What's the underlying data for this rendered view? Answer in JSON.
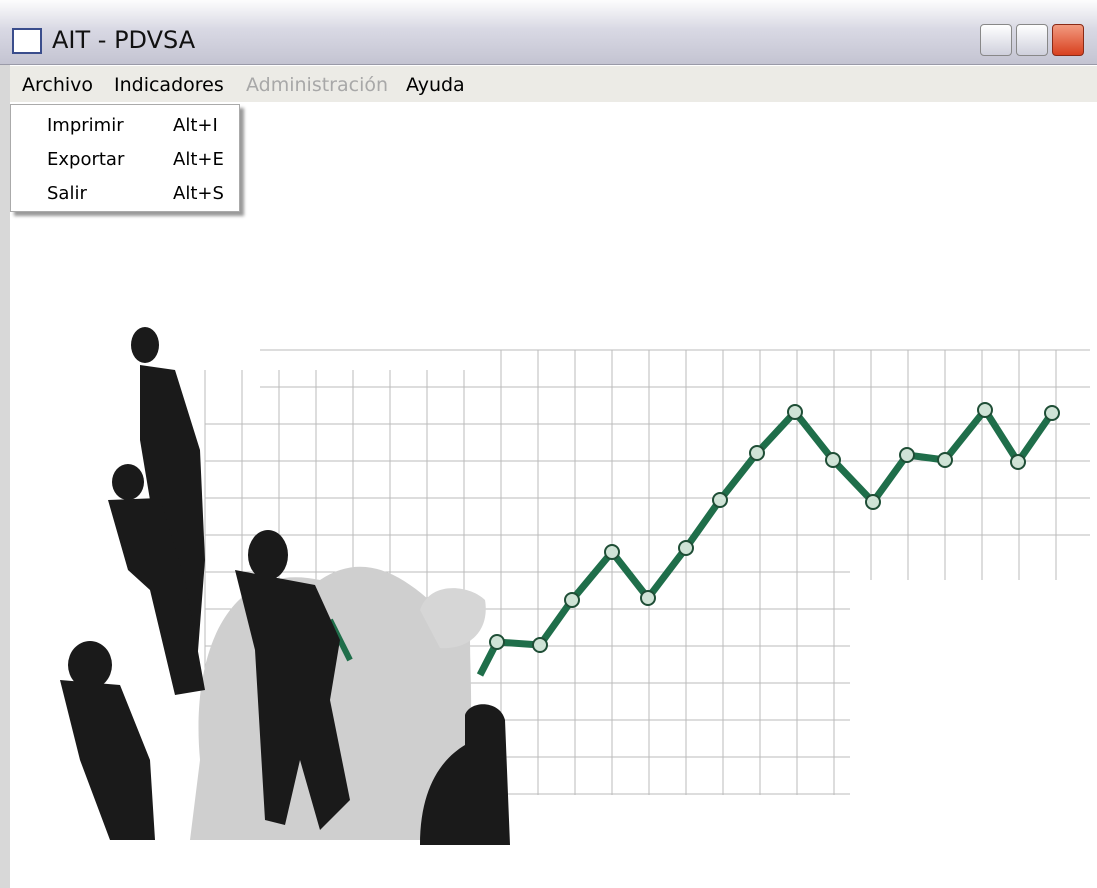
{
  "window": {
    "title": "AIT - PDVSA"
  },
  "menu": [
    "Archivo",
    "Indicadores",
    "Administración",
    "Ayuda"
  ],
  "dropdown": [
    {
      "label": "Imprimir",
      "shortcut": "Alt+I"
    },
    {
      "label": "Exportar",
      "shortcut": "Alt+E"
    },
    {
      "label": "Salir",
      "shortcut": "Alt+S"
    }
  ]
}
